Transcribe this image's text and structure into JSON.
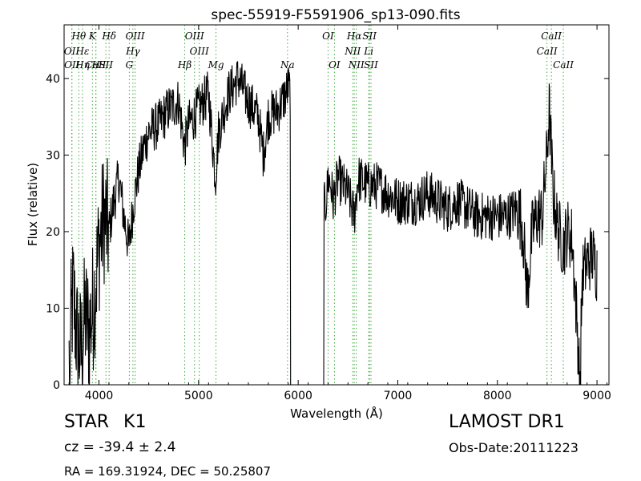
{
  "chart_data": {
    "type": "line",
    "title": "spec-55919-F5591906_sp13-090.fits",
    "xlabel": "Wavelength (Å)",
    "ylabel": "Flux (relative)",
    "xlim": [
      3650,
      9120
    ],
    "ylim": [
      0,
      47
    ],
    "xticks": [
      4000,
      5000,
      6000,
      7000,
      8000,
      9000
    ],
    "yticks": [
      0,
      10,
      20,
      30,
      40
    ],
    "grid": false,
    "legend": "none",
    "series_color": "#000000",
    "line_marker_color": "#44aa44",
    "spectrum_anchors": {
      "x": [
        3700,
        3740,
        3780,
        3820,
        3860,
        3900,
        3950,
        4000,
        4050,
        4100,
        4150,
        4200,
        4250,
        4300,
        4350,
        4400,
        4450,
        4500,
        4600,
        4700,
        4800,
        4860,
        4900,
        5000,
        5100,
        5170,
        5200,
        5300,
        5400,
        5500,
        5600,
        5650,
        5700,
        5800,
        5880,
        5900,
        6270,
        6290,
        6300,
        6330,
        6350,
        6400,
        6450,
        6500,
        6563,
        6600,
        6700,
        6800,
        6900,
        7000,
        7100,
        7200,
        7300,
        7400,
        7500,
        7600,
        7700,
        7800,
        7900,
        8000,
        8100,
        8200,
        8250,
        8300,
        8350,
        8400,
        8450,
        8498,
        8520,
        8542,
        8560,
        8600,
        8662,
        8700,
        8750,
        8800,
        8830,
        8850,
        8900,
        8950,
        9000
      ],
      "y": [
        3,
        12,
        6,
        4,
        9,
        7,
        11,
        18,
        22,
        20,
        24,
        27,
        22,
        18,
        24,
        28,
        31,
        33,
        34,
        36,
        37,
        31,
        34,
        36,
        38,
        27,
        33,
        38,
        40,
        37,
        35,
        30,
        35,
        36,
        38,
        39,
        23,
        25,
        27,
        26,
        24,
        27,
        26,
        25,
        22,
        27,
        26,
        26,
        25,
        24,
        24,
        24,
        25,
        24,
        23,
        24,
        23,
        22,
        22,
        22,
        22,
        23,
        21,
        12,
        20,
        22,
        22,
        30,
        36,
        30,
        25,
        21,
        18,
        20,
        19,
        8,
        0,
        14,
        16,
        17,
        15
      ]
    },
    "spectrum_gaps": [
      [
        3700,
        3710
      ],
      [
        5920,
        6260
      ],
      [
        8830,
        8840
      ]
    ],
    "lines": [
      {
        "label": "Hθ",
        "x": 3798,
        "row": 1
      },
      {
        "label": "K",
        "x": 3934,
        "row": 1
      },
      {
        "label": "Hδ",
        "x": 4102,
        "row": 1
      },
      {
        "label": "OIII",
        "x": 4363,
        "row": 1
      },
      {
        "label": "OIII",
        "x": 4959,
        "row": 1
      },
      {
        "label": "OII",
        "x": 3727,
        "row": 2
      },
      {
        "label": "Hε",
        "x": 3835,
        "row": 2
      },
      {
        "label": "Hγ",
        "x": 4341,
        "row": 2
      },
      {
        "label": "OIII",
        "x": 5007,
        "row": 2
      },
      {
        "label": "OII",
        "x": 3729,
        "row": 3
      },
      {
        "label": "Hη",
        "x": 3835,
        "row": 3
      },
      {
        "label": "CaII",
        "x": 3968,
        "row": 3
      },
      {
        "label": "SII",
        "x": 4070,
        "row": 3
      },
      {
        "label": "H",
        "x": 3970,
        "row": 3
      },
      {
        "label": "G",
        "x": 4305,
        "row": 3
      },
      {
        "label": "Hβ",
        "x": 4861,
        "row": 3
      },
      {
        "label": "Mg",
        "x": 5175,
        "row": 3
      },
      {
        "label": "Na",
        "x": 5893,
        "row": 3
      },
      {
        "label": "OI",
        "x": 6300,
        "row": 1
      },
      {
        "label": "Hα",
        "x": 6563,
        "row": 1
      },
      {
        "label": "SII",
        "x": 6716,
        "row": 1
      },
      {
        "label": "NII",
        "x": 6548,
        "row": 2
      },
      {
        "label": "Li",
        "x": 6708,
        "row": 2
      },
      {
        "label": "OI",
        "x": 6364,
        "row": 3
      },
      {
        "label": "NII",
        "x": 6584,
        "row": 3
      },
      {
        "label": "SII",
        "x": 6731,
        "row": 3
      },
      {
        "label": "CaII",
        "x": 8542,
        "row": 1
      },
      {
        "label": "CaII",
        "x": 8498,
        "row": 2
      },
      {
        "label": "CaII",
        "x": 8662,
        "row": 3
      }
    ]
  },
  "info": {
    "object_class": "STAR",
    "subclass": "K1",
    "cz": "cz = -39.4 ± 2.4",
    "coords": "RA = 169.31924, DEC = 50.25807",
    "survey": "LAMOST DR1",
    "obs_date": "Obs-Date:20111223"
  }
}
